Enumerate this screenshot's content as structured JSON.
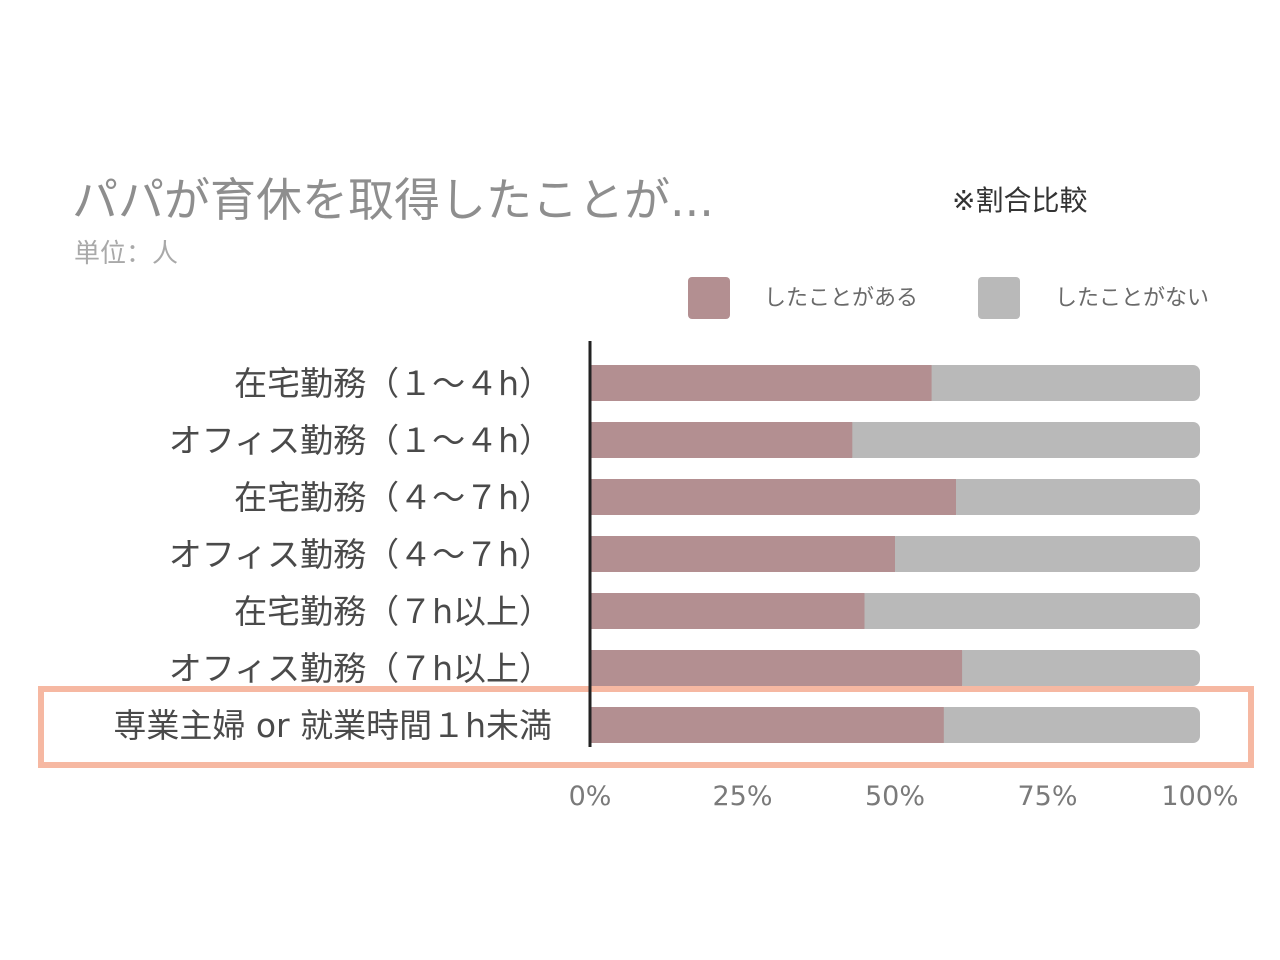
{
  "header": {
    "title": "パパが育休を取得したことが...",
    "unit": "単位：人",
    "note": "※割合比較"
  },
  "colors": {
    "had": "#b38f91",
    "not": "#b9b9b9",
    "highlight": "#f6b8a2",
    "axis": "#222222"
  },
  "chart_data": {
    "type": "bar",
    "orientation": "horizontal",
    "stacked": true,
    "percent": true,
    "categories": [
      "在宅勤務（１～４h）",
      "オフィス勤務（１～４h）",
      "在宅勤務（４～７h）",
      "オフィス勤務（４～７h）",
      "在宅勤務（７h以上）",
      "オフィス勤務（７h以上）",
      "専業主婦 or 就業時間１h未満"
    ],
    "series": [
      {
        "name": "したことがある",
        "values": [
          56,
          43,
          60,
          50,
          45,
          61,
          58
        ]
      },
      {
        "name": "したことがない",
        "values": [
          44,
          57,
          40,
          50,
          55,
          39,
          42
        ]
      }
    ],
    "xlim": [
      0,
      100
    ],
    "xticks": [
      "0%",
      "25%",
      "50%",
      "75%",
      "100%"
    ],
    "legend_position": "top-right",
    "highlighted_category": "専業主婦 or 就業時間１h未満"
  }
}
